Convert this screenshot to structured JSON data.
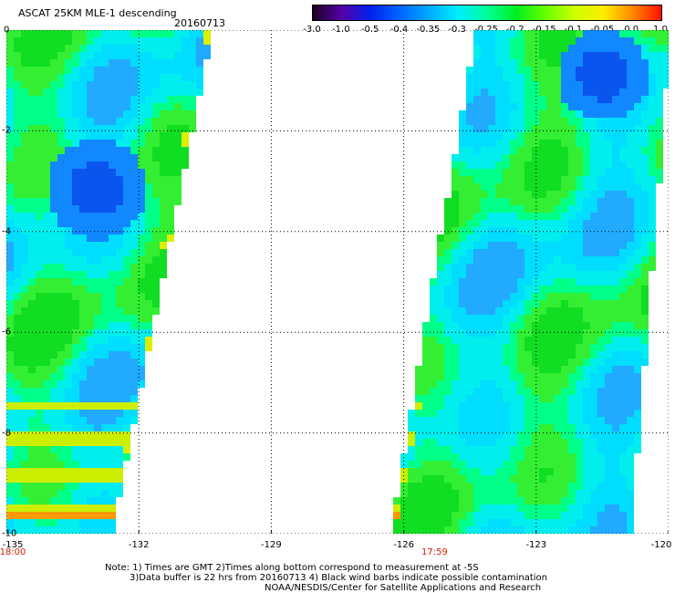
{
  "header": {
    "title": "ASCAT 25KM MLE-1 descending",
    "date": "20160713"
  },
  "colorbar": {
    "labels": [
      "-3.0",
      "-1.0",
      "-0.5",
      "-0.4",
      "-0.35",
      "-0.3",
      "-0.25",
      "-0.2",
      "-0.15",
      "-0.1",
      "-0.05",
      "0.0",
      "1.0"
    ],
    "colors": [
      "#1a0022",
      "#5500aa",
      "#0022ee",
      "#0066ff",
      "#00aaff",
      "#00eeff",
      "#00ff99",
      "#00ee22",
      "#66ff00",
      "#ccff00",
      "#ffee00",
      "#ff8800",
      "#ff1100"
    ]
  },
  "map": {
    "x_axis": {
      "ticks": [
        "-135",
        "-132",
        "-129",
        "-126",
        "-123",
        "-120"
      ],
      "values": [
        -135,
        -132,
        -129,
        -126,
        -123,
        -120
      ],
      "range": [
        -135,
        -120
      ]
    },
    "y_axis": {
      "ticks": [
        "0",
        "-2",
        "-4",
        "-6",
        "-8",
        "-10"
      ],
      "values": [
        0,
        -2,
        -4,
        -6,
        -8,
        -10
      ],
      "range": [
        -10,
        0
      ]
    },
    "times": [
      {
        "label": "18:00",
        "lon": -135
      },
      {
        "label": "17:59",
        "lon": -125.3
      }
    ],
    "grid": "dotted"
  },
  "notes": {
    "line1": "Note: 1) Times are GMT 2)Times along bottom correspond to measurement at -5S",
    "line2": "3)Data buffer is 22 hrs from 20160713 4) Black wind barbs indicate possible contamination",
    "line3": "NOAA/NESDIS/Center for Satellite Applications and Research"
  }
}
